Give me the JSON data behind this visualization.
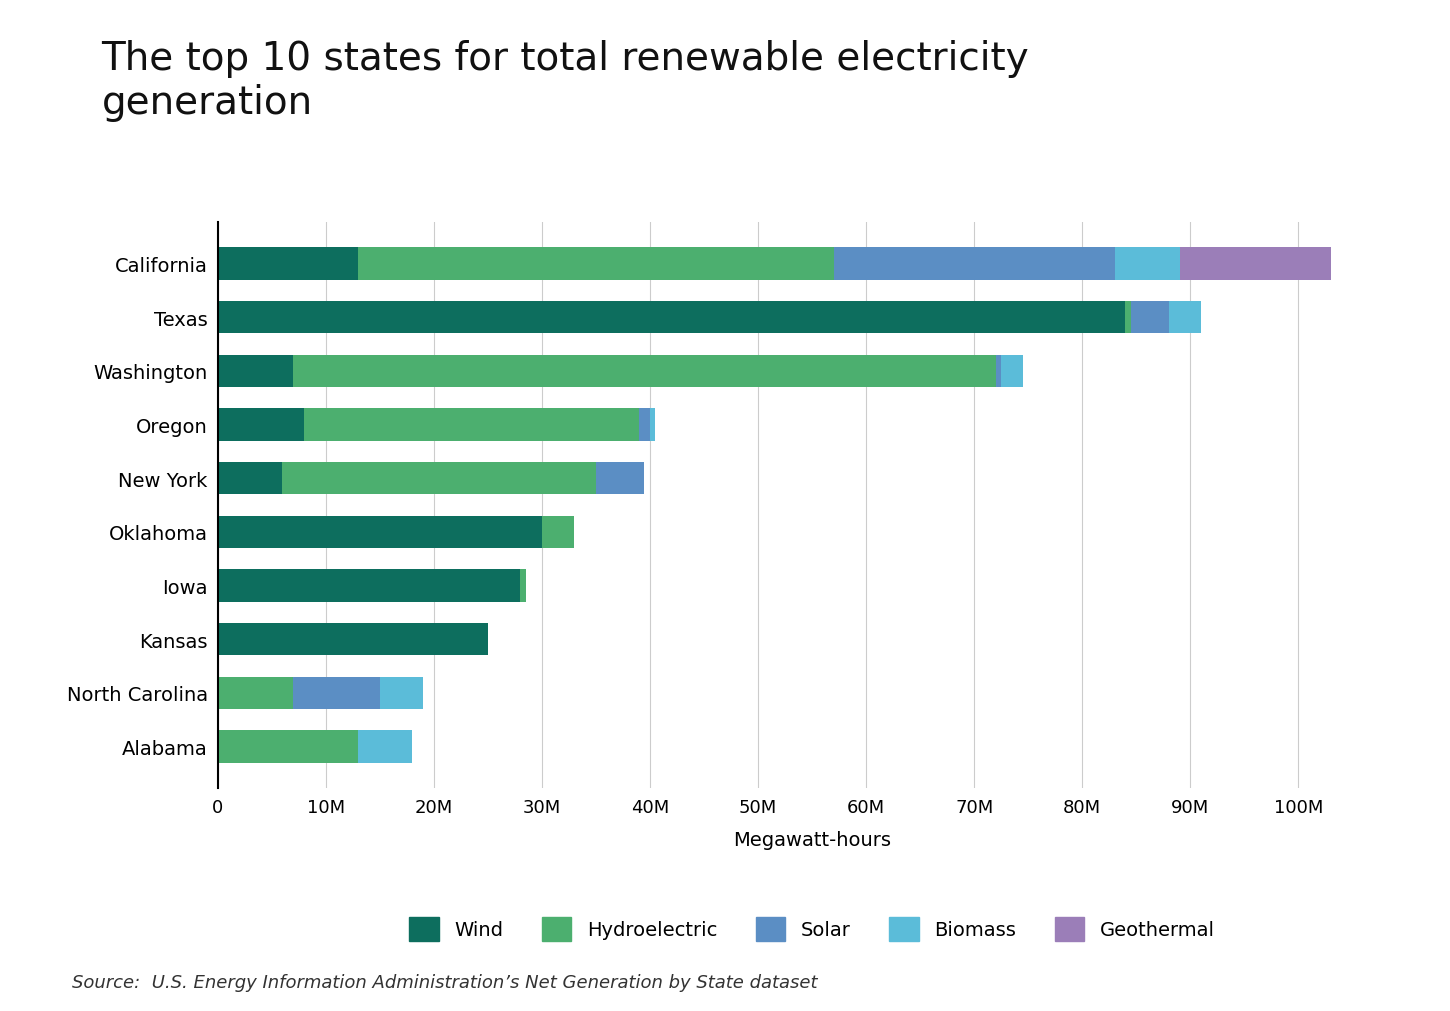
{
  "title": "The top 10 states for total renewable electricity\ngeneration",
  "xlabel": "Megawatt-hours",
  "source_text": "Source:  U.S. Energy Information Administration’s Net Generation by State dataset",
  "states": [
    "California",
    "Texas",
    "Washington",
    "Oregon",
    "New York",
    "Oklahoma",
    "Iowa",
    "Kansas",
    "North Carolina",
    "Alabama"
  ],
  "wind": [
    13000000,
    84000000,
    7000000,
    8000000,
    6000000,
    30000000,
    28000000,
    25000000,
    0,
    0
  ],
  "hydro": [
    44000000,
    500000,
    65000000,
    31000000,
    29000000,
    3000000,
    500000,
    0,
    7000000,
    13000000
  ],
  "solar": [
    26000000,
    3500000,
    500000,
    1000000,
    4500000,
    0,
    0,
    0,
    8000000,
    0
  ],
  "biomass": [
    6000000,
    3000000,
    2000000,
    500000,
    0,
    0,
    0,
    0,
    4000000,
    5000000
  ],
  "geothermal": [
    14000000,
    0,
    0,
    0,
    0,
    0,
    0,
    0,
    0,
    0
  ],
  "colors": {
    "wind": "#0d6e5e",
    "hydro": "#4caf6f",
    "solar": "#5b8ec4",
    "biomass": "#5bbcd9",
    "geothermal": "#9b7eb8"
  },
  "legend_labels": [
    "Wind",
    "Hydroelectric",
    "Solar",
    "Biomass",
    "Geothermal"
  ],
  "xlim": [
    0,
    110000000
  ],
  "xtick_values": [
    0,
    10000000,
    20000000,
    30000000,
    40000000,
    50000000,
    60000000,
    70000000,
    80000000,
    90000000,
    100000000
  ],
  "xtick_labels": [
    "0",
    "10M",
    "20M",
    "30M",
    "40M",
    "50M",
    "60M",
    "70M",
    "80M",
    "90M",
    "100M"
  ],
  "background_color": "#ffffff",
  "title_fontsize": 28,
  "label_fontsize": 14,
  "tick_fontsize": 13,
  "legend_fontsize": 14,
  "source_fontsize": 13
}
